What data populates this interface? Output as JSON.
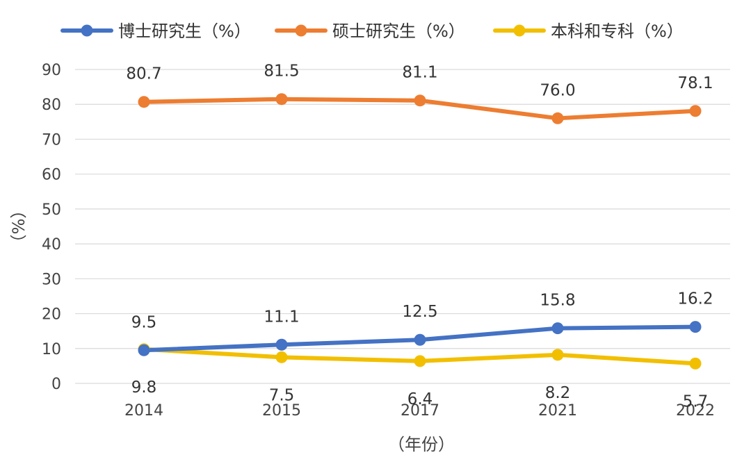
{
  "chart_data": {
    "type": "line",
    "x": [
      "2014",
      "2015",
      "2017",
      "2021",
      "2022"
    ],
    "xlabel": "（年份）",
    "ylabel": "（%）",
    "ylim": [
      0,
      90
    ],
    "yticks": [
      "0",
      "10",
      "20",
      "30",
      "40",
      "50",
      "60",
      "70",
      "80",
      "90"
    ],
    "grid": true,
    "legend_position": "top",
    "series": [
      {
        "name": "博士研究生（%）",
        "color": "#4472C4",
        "values": [
          9.5,
          11.1,
          12.5,
          15.8,
          16.2
        ],
        "labels": [
          "9.5",
          "11.1",
          "12.5",
          "15.8",
          "16.2"
        ],
        "label_position": "above"
      },
      {
        "name": "硕士研究生（%）",
        "color": "#ED7D31",
        "values": [
          80.7,
          81.5,
          81.1,
          76.0,
          78.1
        ],
        "labels": [
          "80.7",
          "81.5",
          "81.1",
          "76.0",
          "78.1"
        ],
        "label_position": "above"
      },
      {
        "name": "本科和专科（%）",
        "color": "#F2BF00",
        "values": [
          9.8,
          7.5,
          6.4,
          8.2,
          5.7
        ],
        "labels": [
          "9.8",
          "7.5",
          "6.4",
          "8.2",
          "5.7"
        ],
        "label_position": "below"
      }
    ]
  }
}
